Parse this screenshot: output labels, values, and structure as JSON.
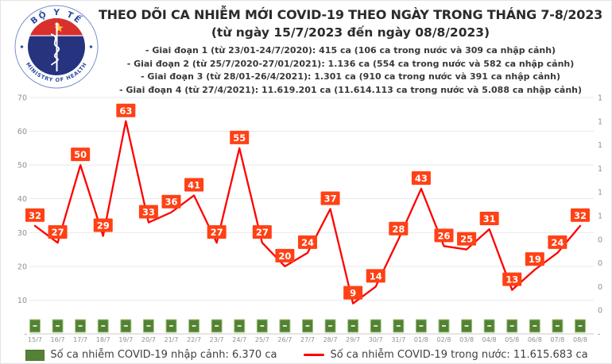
{
  "header": {
    "logo": {
      "top_text": "BỘ Y TẾ",
      "bottom_text": "MINISTRY OF HEALTH"
    },
    "title": "THEO DÕI CA NHIỄM MỚI COVID-19 THEO NGÀY TRONG THÁNG 7-8/2023",
    "subtitle": "(từ ngày 15/7/2023 đến ngày 08/8/2023)",
    "stages": [
      "- Giai đoạn 1 (từ 23/01-24/7/2020): 415 ca (106 ca trong nước và 309 ca nhập cảnh)",
      "- Giai đoạn 2 (từ 25/7/2020-27/01/2021): 1.136 ca (554 ca trong nước và 582 ca nhập cảnh)",
      "- Giai đoạn 3 (từ 28/01-26/4/2021): 1.301 ca (910 ca trong nước và 391 ca nhập cảnh)",
      "- Giai đoạn 4 (từ 27/4/2021): 11.619.201 ca (11.614.113 ca trong nước và 5.088 ca nhập cảnh)"
    ]
  },
  "chart_data": {
    "type": "line",
    "title": "THEO DÕI CA NHIỄM MỚI COVID-19 THEO NGÀY TRONG THÁNG 7-8/2023",
    "categories": [
      "15/7",
      "16/7",
      "17/7",
      "18/7",
      "19/7",
      "20/7",
      "21/7",
      "22/7",
      "23/7",
      "24/7",
      "25/7",
      "26/7",
      "27/7",
      "28/7",
      "29/7",
      "30/7",
      "31/7",
      "01/8",
      "02/8",
      "03/8",
      "04/8",
      "05/8",
      "06/8",
      "07/8",
      "08/8"
    ],
    "series": [
      {
        "name": "Số ca nhiễm COVID-19 trong nước",
        "type": "line",
        "values": [
          32,
          27,
          50,
          29,
          63,
          33,
          36,
          41,
          27,
          55,
          27,
          20,
          24,
          37,
          9,
          14,
          28,
          43,
          26,
          25,
          31,
          13,
          19,
          24,
          32
        ]
      },
      {
        "name": "Số ca nhiễm COVID-19 nhập cảnh",
        "type": "square-markers",
        "approx_value": 2
      }
    ],
    "y_left": {
      "min": 0,
      "max": 70,
      "tick_step": 10,
      "tick_labels": [
        "70",
        "60",
        "50",
        "40",
        "30",
        "20",
        "10",
        "-"
      ]
    },
    "y_right": {
      "tick_labels": [
        "1",
        "1",
        "1",
        "1",
        "1",
        "1",
        "0",
        "0",
        "0",
        "0",
        "-"
      ]
    },
    "grid": "horizontal",
    "legend_position": "bottom"
  },
  "legend": {
    "imported_label": "Số ca nhiễm COVID-19 nhập cảnh: 6.370 ca",
    "domestic_label": "Số ca nhiễm COVID-19 trong nước: 11.615.683 ca"
  },
  "colors": {
    "line_red": "#fe0000",
    "value_label_bg": "#ff4115",
    "value_label_text": "#ffffff",
    "marker_green": "#548235",
    "marker_green_border": "#a2c57f",
    "marker_green_dash": "#d9e8c8",
    "grid": "#e9e9e9",
    "axis_line": "#c8c8c8",
    "axis_text": "#8f8f8f",
    "legend_text": "#3f3f3f"
  }
}
